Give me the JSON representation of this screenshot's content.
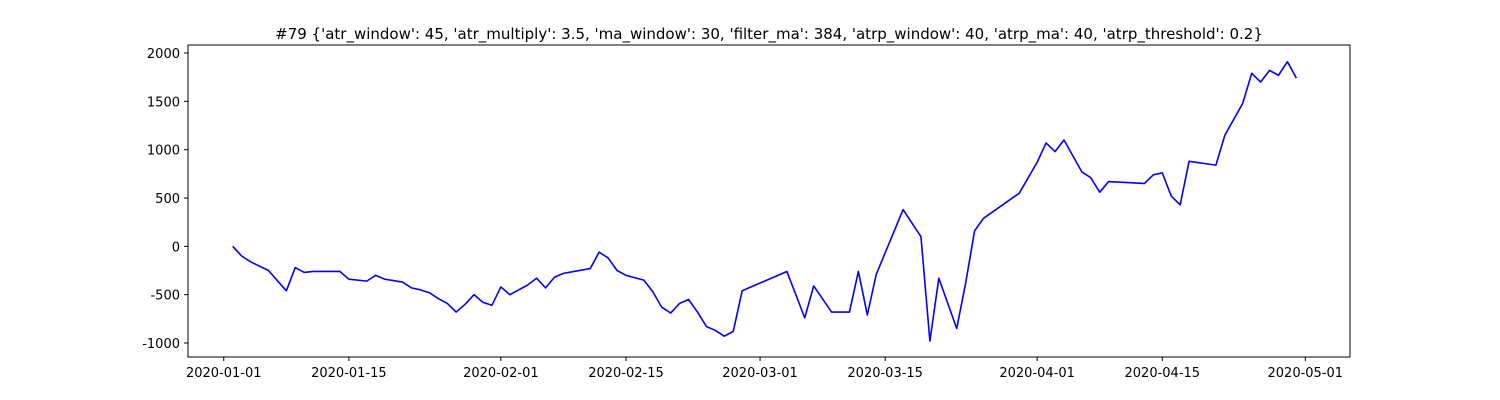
{
  "chart_data": {
    "type": "line",
    "title": "#79 {'atr_window': 45, 'atr_multiply': 3.5, 'ma_window': 30, 'filter_ma': 384, 'atrp_window': 40, 'atrp_ma': 40, 'atrp_threshold': 0.2}",
    "x": [
      "2020-01-02",
      "2020-01-03",
      "2020-01-04",
      "2020-01-06",
      "2020-01-08",
      "2020-01-09",
      "2020-01-10",
      "2020-01-11",
      "2020-01-14",
      "2020-01-15",
      "2020-01-17",
      "2020-01-18",
      "2020-01-19",
      "2020-01-21",
      "2020-01-22",
      "2020-01-23",
      "2020-01-24",
      "2020-01-25",
      "2020-01-26",
      "2020-01-27",
      "2020-01-28",
      "2020-01-29",
      "2020-01-30",
      "2020-01-31",
      "2020-02-01",
      "2020-02-02",
      "2020-02-04",
      "2020-02-05",
      "2020-02-06",
      "2020-02-07",
      "2020-02-08",
      "2020-02-11",
      "2020-02-12",
      "2020-02-13",
      "2020-02-14",
      "2020-02-15",
      "2020-02-17",
      "2020-02-18",
      "2020-02-19",
      "2020-02-20",
      "2020-02-21",
      "2020-02-22",
      "2020-02-23",
      "2020-02-24",
      "2020-02-25",
      "2020-02-26",
      "2020-02-27",
      "2020-02-28",
      "2020-03-04",
      "2020-03-06",
      "2020-03-07",
      "2020-03-09",
      "2020-03-11",
      "2020-03-12",
      "2020-03-13",
      "2020-03-14",
      "2020-03-17",
      "2020-03-19",
      "2020-03-20",
      "2020-03-21",
      "2020-03-23",
      "2020-03-24",
      "2020-03-25",
      "2020-03-26",
      "2020-03-30",
      "2020-04-01",
      "2020-04-02",
      "2020-04-03",
      "2020-04-04",
      "2020-04-06",
      "2020-04-07",
      "2020-04-08",
      "2020-04-09",
      "2020-04-13",
      "2020-04-14",
      "2020-04-15",
      "2020-04-16",
      "2020-04-17",
      "2020-04-18",
      "2020-04-21",
      "2020-04-22",
      "2020-04-24",
      "2020-04-25",
      "2020-04-26",
      "2020-04-27",
      "2020-04-28",
      "2020-04-29",
      "2020-04-30"
    ],
    "series": [
      {
        "color": "#0000ff",
        "values": [
          0,
          -100,
          -160,
          -250,
          -460,
          -220,
          -270,
          -260,
          -260,
          -340,
          -360,
          -300,
          -340,
          -370,
          -430,
          -450,
          -480,
          -540,
          -590,
          -680,
          -600,
          -500,
          -580,
          -610,
          -420,
          -500,
          -400,
          -330,
          -430,
          -320,
          -280,
          -230,
          -60,
          -120,
          -250,
          -300,
          -350,
          -470,
          -630,
          -690,
          -590,
          -550,
          -680,
          -830,
          -870,
          -930,
          -880,
          -460,
          -260,
          -740,
          -410,
          -680,
          -680,
          -260,
          -710,
          -290,
          380,
          100,
          -980,
          -330,
          -850,
          -380,
          160,
          290,
          550,
          870,
          1070,
          980,
          1100,
          770,
          710,
          560,
          670,
          650,
          740,
          760,
          520,
          430,
          880,
          840,
          1150,
          1480,
          1790,
          1700,
          1820,
          1770,
          1910,
          1740
        ]
      }
    ],
    "xlim": [
      "2019-12-28",
      "2020-05-06"
    ],
    "xticks": [
      "2020-01-01",
      "2020-01-15",
      "2020-02-01",
      "2020-02-15",
      "2020-03-01",
      "2020-03-15",
      "2020-04-01",
      "2020-04-15",
      "2020-05-01"
    ],
    "ylim": [
      -1145,
      2083
    ],
    "yticks": [
      -1000,
      -500,
      0,
      500,
      1000,
      1500,
      2000
    ]
  }
}
